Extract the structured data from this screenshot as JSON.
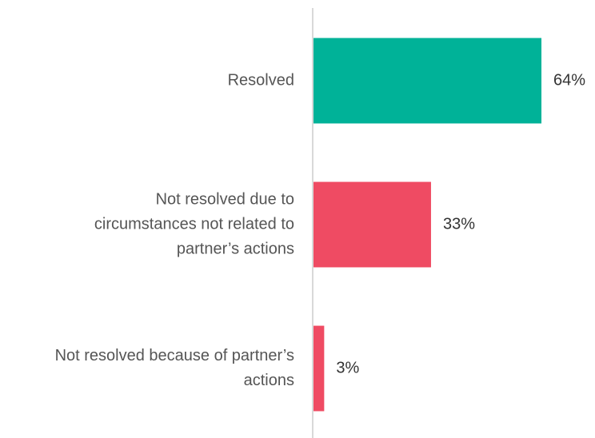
{
  "chart_data": {
    "type": "bar",
    "orientation": "horizontal",
    "categories": [
      "Resolved",
      "Not resolved due to\ncircumstances not related to\npartner’s actions",
      "Not resolved because of partner’s\nactions"
    ],
    "values": [
      64,
      33,
      3
    ],
    "value_labels": [
      "64%",
      "33%",
      "3%"
    ],
    "colors": [
      "#00b298",
      "#ef4b63",
      "#ef4b63"
    ],
    "xlim": [
      0,
      75
    ]
  }
}
